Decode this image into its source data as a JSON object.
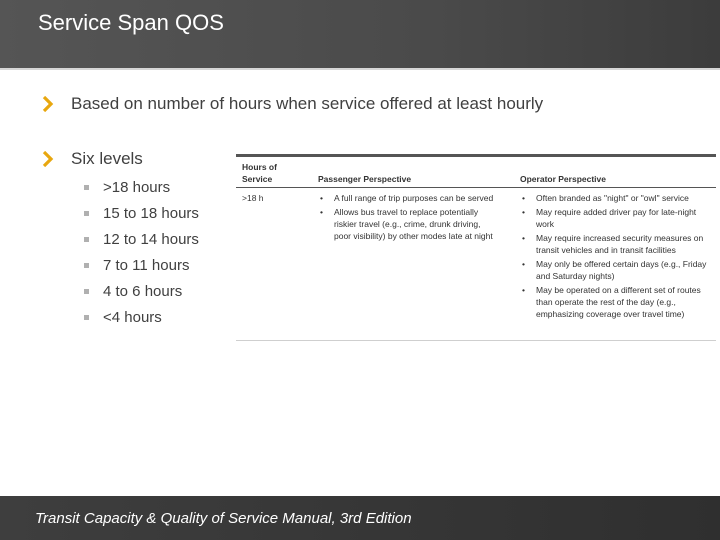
{
  "slide": {
    "title": "Service Span QOS",
    "bullets": [
      "Based on number of hours when service offered at least hourly",
      "Six levels"
    ],
    "levels": [
      ">18 hours",
      "15 to 18 hours",
      "12 to 14 hours",
      "7 to 11 hours",
      "4 to 6 hours",
      "<4 hours"
    ],
    "footer": "Transit Capacity & Quality of Service Manual, 3rd Edition"
  },
  "table": {
    "headers": {
      "hours_line1": "Hours of",
      "hours_line2": "Service",
      "passenger": "Passenger Perspective",
      "operator": "Operator Perspective"
    },
    "row": {
      "hours": ">18 h",
      "passenger": [
        "A full range of trip purposes can be served",
        "Allows bus travel to replace potentially riskier travel (e.g., crime, drunk driving, poor visibility) by other modes late at night"
      ],
      "operator": [
        "Often branded as \"night\" or \"owl\" service",
        "May require added driver pay for late-night work",
        "May require increased security measures on transit vehicles and in transit facilities",
        "May only be offered certain days (e.g., Friday and Saturday nights)",
        "May be operated on a different set of routes than operate the rest of the day (e.g., emphasizing coverage over travel time)"
      ]
    }
  },
  "colors": {
    "chevron": "#e8a70f",
    "header_bg": "#4a4a4a",
    "footer_bg": "#333333"
  }
}
